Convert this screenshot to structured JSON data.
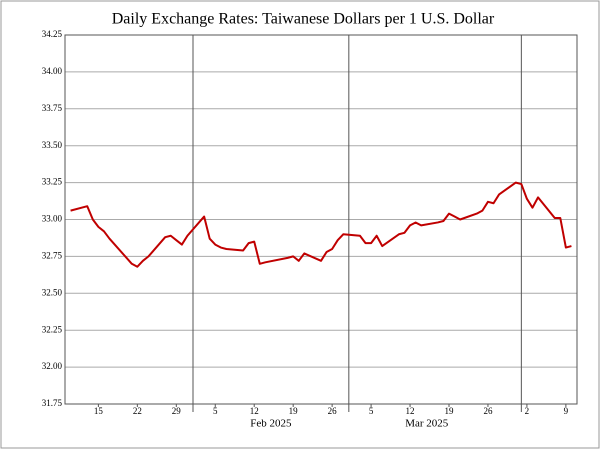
{
  "chart_data": {
    "type": "line",
    "title": "Daily Exchange Rates: Taiwanese Dollars per 1 U.S. Dollar",
    "x": [
      "2025-01-10",
      "2025-01-13",
      "2025-01-14",
      "2025-01-15",
      "2025-01-16",
      "2025-01-17",
      "2025-01-21",
      "2025-01-22",
      "2025-01-23",
      "2025-01-24",
      "2025-01-27",
      "2025-01-28",
      "2025-01-29",
      "2025-01-30",
      "2025-01-31",
      "2025-02-03",
      "2025-02-04",
      "2025-02-05",
      "2025-02-06",
      "2025-02-07",
      "2025-02-10",
      "2025-02-11",
      "2025-02-12",
      "2025-02-13",
      "2025-02-14",
      "2025-02-18",
      "2025-02-19",
      "2025-02-20",
      "2025-02-21",
      "2025-02-24",
      "2025-02-25",
      "2025-02-26",
      "2025-02-27",
      "2025-02-28",
      "2025-03-03",
      "2025-03-04",
      "2025-03-05",
      "2025-03-06",
      "2025-03-07",
      "2025-03-10",
      "2025-03-11",
      "2025-03-12",
      "2025-03-13",
      "2025-03-14",
      "2025-03-17",
      "2025-03-18",
      "2025-03-19",
      "2025-03-20",
      "2025-03-21",
      "2025-03-24",
      "2025-03-25",
      "2025-03-26",
      "2025-03-27",
      "2025-03-28",
      "2025-03-31",
      "2025-04-01",
      "2025-04-02",
      "2025-04-03",
      "2025-04-04",
      "2025-04-07",
      "2025-04-08",
      "2025-04-09",
      "2025-04-10"
    ],
    "series": [
      {
        "name": "TWD per USD",
        "color": "#c00000",
        "values": [
          33.06,
          33.09,
          33.0,
          32.95,
          32.92,
          32.87,
          32.7,
          32.68,
          32.72,
          32.75,
          32.88,
          32.89,
          32.86,
          32.83,
          32.89,
          33.02,
          32.87,
          32.83,
          32.81,
          32.8,
          32.79,
          32.84,
          32.85,
          32.7,
          32.71,
          32.74,
          32.75,
          32.72,
          32.77,
          32.72,
          32.78,
          32.8,
          32.86,
          32.9,
          32.89,
          32.84,
          32.84,
          32.89,
          32.82,
          32.9,
          32.91,
          32.96,
          32.98,
          32.96,
          32.98,
          32.99,
          33.04,
          33.02,
          33.0,
          33.04,
          33.06,
          33.12,
          33.11,
          33.17,
          33.25,
          33.24,
          33.14,
          33.08,
          33.15,
          33.01,
          33.01,
          32.81,
          32.82
        ]
      }
    ],
    "xlim": [
      "2025-01-09",
      "2025-04-11"
    ],
    "xticks": [
      {
        "value": "2025-01-15",
        "label": "15"
      },
      {
        "value": "2025-01-22",
        "label": "22"
      },
      {
        "value": "2025-01-29",
        "label": "29"
      },
      {
        "value": "2025-02-05",
        "label": "5"
      },
      {
        "value": "2025-02-12",
        "label": "12"
      },
      {
        "value": "2025-02-19",
        "label": "19"
      },
      {
        "value": "2025-02-26",
        "label": "26"
      },
      {
        "value": "2025-03-05",
        "label": "5"
      },
      {
        "value": "2025-03-12",
        "label": "12"
      },
      {
        "value": "2025-03-19",
        "label": "19"
      },
      {
        "value": "2025-03-26",
        "label": "26"
      },
      {
        "value": "2025-04-02",
        "label": "2"
      },
      {
        "value": "2025-04-09",
        "label": "9"
      }
    ],
    "month_labels": [
      {
        "value": "2025-02-15",
        "label": "Feb 2025"
      },
      {
        "value": "2025-03-15",
        "label": "Mar 2025"
      }
    ],
    "month_lines": [
      "2025-02-01",
      "2025-03-01",
      "2025-04-01"
    ],
    "ylim": [
      31.75,
      34.25
    ],
    "yticks": [
      31.75,
      {
        "value": 32,
        "label": "32.00"
      },
      32.25,
      {
        "value": 32.5,
        "label": "32.50"
      },
      32.75,
      {
        "value": 33,
        "label": "33.00"
      },
      33.25,
      {
        "value": 33.5,
        "label": "33.50"
      },
      33.75,
      {
        "value": 34,
        "label": "34.00"
      },
      34.25
    ],
    "grid": true
  }
}
